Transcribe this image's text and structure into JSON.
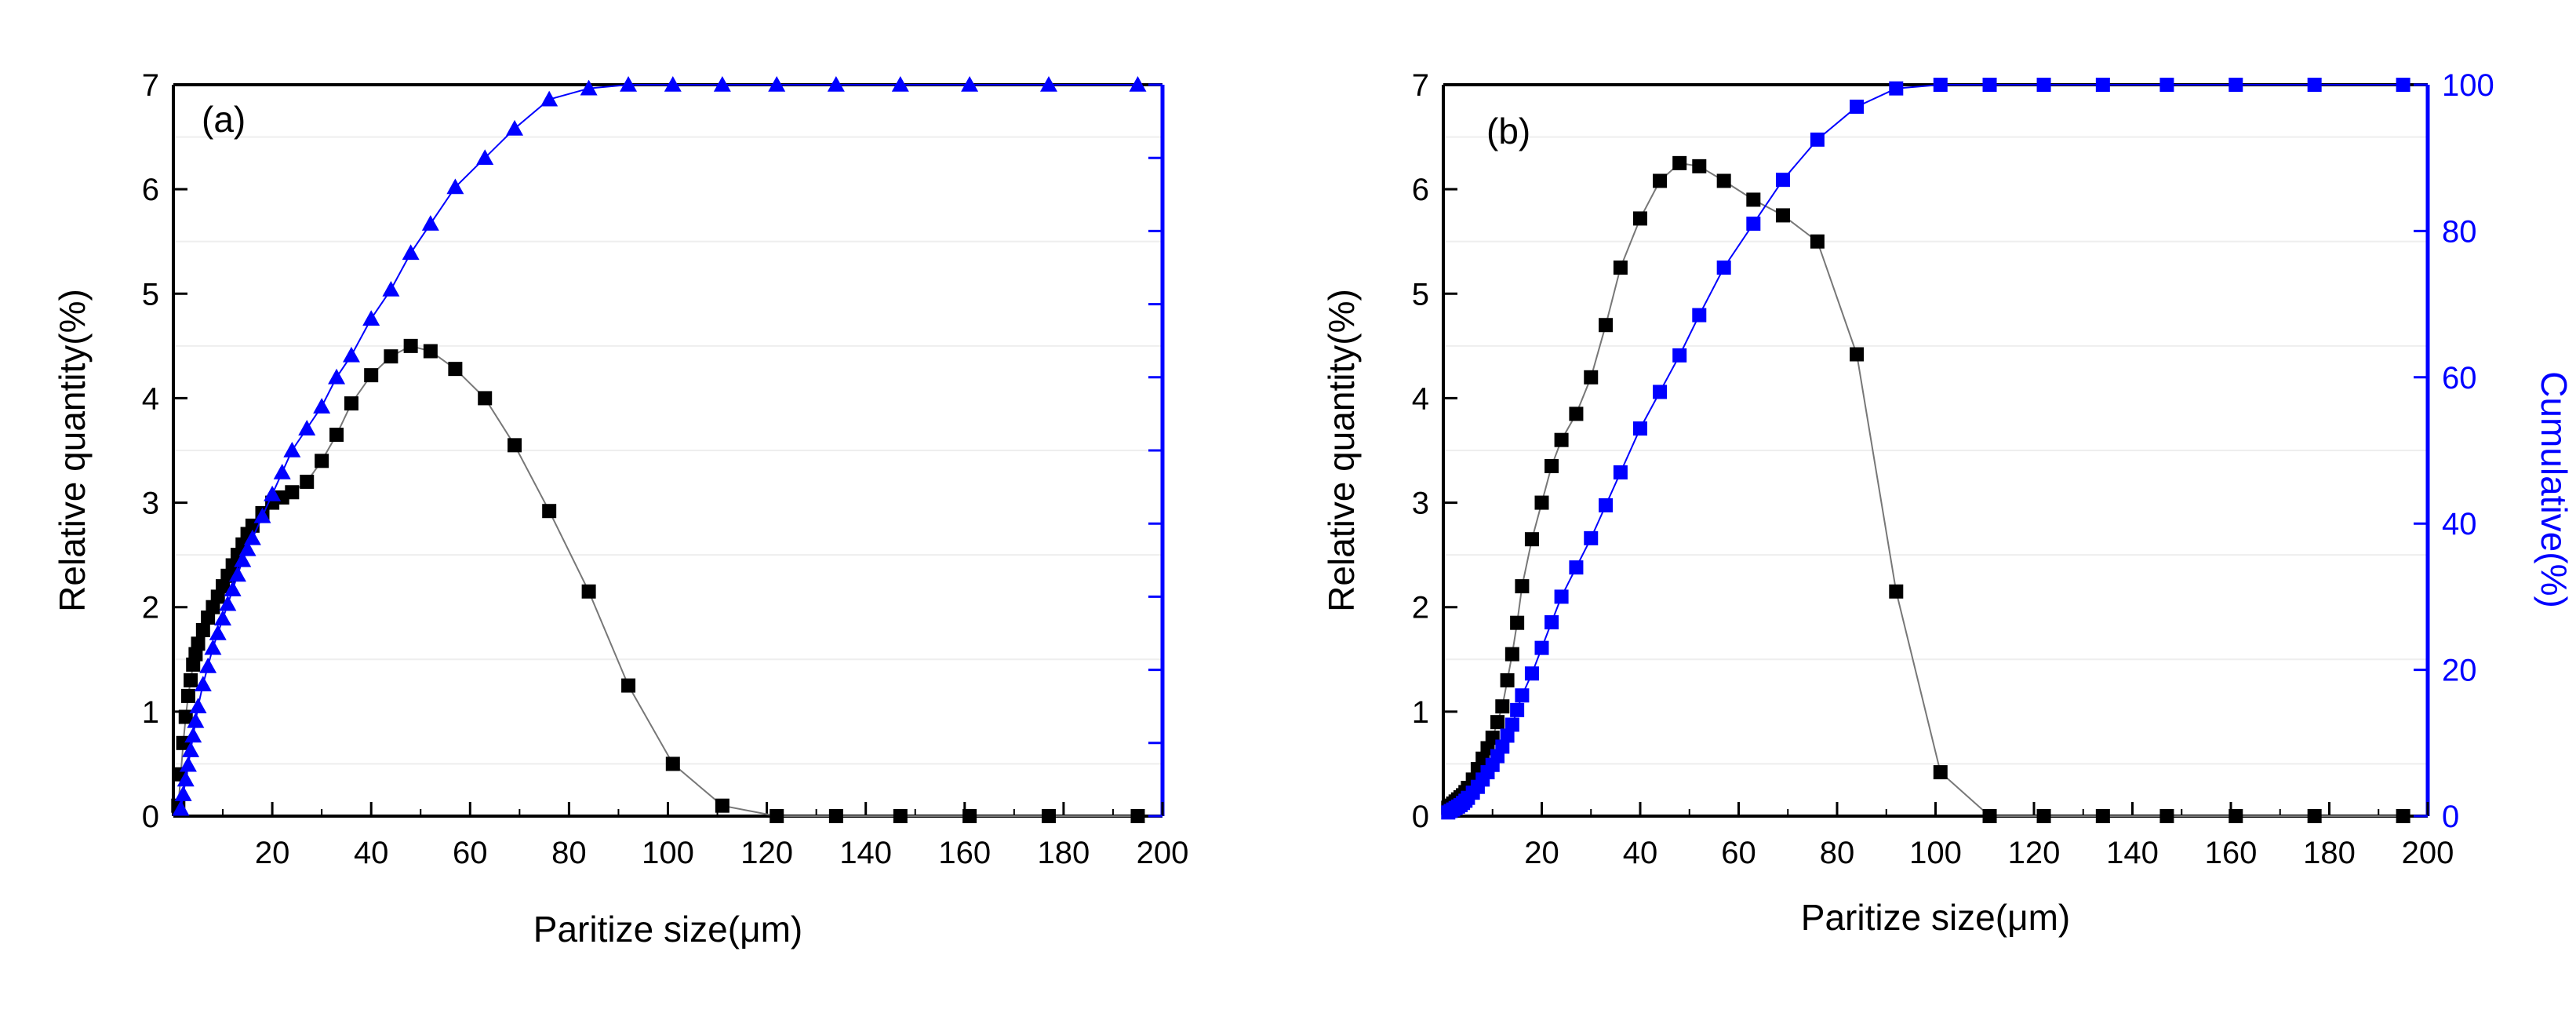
{
  "chart_data": [
    {
      "type": "line",
      "panel_label": "(a)",
      "xlabel": "Paritize size(μm)",
      "ylabel": "Relative quantity(%)",
      "xlim": [
        0,
        200
      ],
      "ylim": [
        0,
        7
      ],
      "x_ticks": [
        20,
        40,
        60,
        80,
        100,
        120,
        140,
        160,
        180,
        200
      ],
      "x_tick_labels": [
        "20",
        "40",
        "60",
        "80",
        "100",
        "120",
        "140",
        "160",
        "180",
        "200"
      ],
      "y_ticks": [
        0,
        1,
        2,
        3,
        4,
        5,
        6,
        7
      ],
      "y_tick_labels": [
        "0",
        "1",
        "2",
        "3",
        "4",
        "5",
        "6",
        "7"
      ],
      "y2": {
        "label": "",
        "lim": [
          0,
          100
        ],
        "ticks": [
          0,
          10,
          20,
          30,
          40,
          50,
          60,
          70,
          80,
          90,
          100
        ],
        "tick_labels": [],
        "color": "#0000ff"
      },
      "series": [
        {
          "name": "Relative quantity",
          "axis": "y",
          "marker": "square",
          "color": "#000000",
          "x": [
            1,
            1.5,
            2,
            2.5,
            3,
            3.5,
            4,
            4.5,
            5,
            6,
            7,
            8,
            9,
            10,
            11,
            12,
            13,
            14,
            15,
            16,
            18,
            20,
            22,
            24,
            27,
            30,
            33,
            36,
            40,
            44,
            48,
            52,
            57,
            63,
            69,
            76,
            84,
            92,
            101,
            111,
            122,
            134,
            147,
            161,
            177,
            195
          ],
          "y": [
            0.1,
            0.4,
            0.7,
            0.95,
            1.15,
            1.3,
            1.45,
            1.55,
            1.65,
            1.78,
            1.9,
            2.0,
            2.1,
            2.2,
            2.3,
            2.4,
            2.5,
            2.6,
            2.7,
            2.78,
            2.9,
            3.0,
            3.05,
            3.1,
            3.2,
            3.4,
            3.65,
            3.95,
            4.22,
            4.4,
            4.5,
            4.45,
            4.28,
            4.0,
            3.55,
            2.92,
            2.15,
            1.25,
            0.5,
            0.1,
            0.0,
            0.0,
            0.0,
            0.0,
            0.0,
            0.0
          ]
        },
        {
          "name": "Cumulative",
          "axis": "y2",
          "marker": "triangle",
          "color": "#0000ff",
          "x": [
            1.5,
            2,
            2.5,
            3,
            3.5,
            4,
            4.5,
            5,
            6,
            7,
            8,
            9,
            10,
            11,
            12,
            13,
            14,
            15,
            16,
            18,
            20,
            22,
            24,
            27,
            30,
            33,
            36,
            40,
            44,
            48,
            52,
            57,
            63,
            69,
            76,
            84,
            92,
            101,
            111,
            122,
            134,
            147,
            161,
            177,
            195
          ],
          "y": [
            1,
            3,
            5,
            7,
            9,
            11,
            13,
            15,
            18,
            20.5,
            23,
            25,
            27,
            29,
            31,
            33,
            35,
            36.5,
            38,
            41,
            44,
            47,
            50,
            53,
            56,
            60,
            63,
            68,
            72,
            77,
            81,
            86,
            90,
            94,
            98,
            99.5,
            100,
            100,
            100,
            100,
            100,
            100,
            100,
            100,
            100
          ]
        }
      ]
    },
    {
      "type": "line",
      "panel_label": "(b)",
      "xlabel": "Paritize size(μm)",
      "ylabel": "Relative quantity(%)",
      "xlim": [
        0,
        200
      ],
      "ylim": [
        0,
        7
      ],
      "x_ticks": [
        20,
        40,
        60,
        80,
        100,
        120,
        140,
        160,
        180,
        200
      ],
      "x_tick_labels": [
        "20",
        "40",
        "60",
        "80",
        "100",
        "120",
        "140",
        "160",
        "180",
        "200"
      ],
      "y_ticks": [
        0,
        1,
        2,
        3,
        4,
        5,
        6,
        7
      ],
      "y_tick_labels": [
        "0",
        "1",
        "2",
        "3",
        "4",
        "5",
        "6",
        "7"
      ],
      "y2": {
        "label": "Cumulative(%)",
        "lim": [
          0,
          100
        ],
        "ticks": [
          0,
          20,
          40,
          60,
          80,
          100
        ],
        "tick_labels": [
          "0",
          "20",
          "40",
          "60",
          "80",
          "100"
        ],
        "color": "#0000ff"
      },
      "series": [
        {
          "name": "Relative quantity",
          "axis": "y",
          "marker": "square",
          "color": "#000000",
          "x": [
            1,
            1.5,
            2,
            2.5,
            3,
            3.5,
            4,
            4.5,
            5,
            6,
            7,
            8,
            9,
            10,
            11,
            12,
            13,
            14,
            15,
            16,
            18,
            20,
            22,
            24,
            27,
            30,
            33,
            36,
            40,
            44,
            48,
            52,
            57,
            63,
            69,
            76,
            84,
            92,
            101,
            111,
            122,
            134,
            147,
            161,
            177,
            195
          ],
          "y": [
            0.08,
            0.1,
            0.12,
            0.14,
            0.16,
            0.18,
            0.2,
            0.23,
            0.27,
            0.35,
            0.45,
            0.55,
            0.65,
            0.75,
            0.9,
            1.05,
            1.3,
            1.55,
            1.85,
            2.2,
            2.65,
            3.0,
            3.35,
            3.6,
            3.85,
            4.2,
            4.7,
            5.25,
            5.72,
            6.08,
            6.25,
            6.22,
            6.08,
            5.9,
            5.75,
            5.5,
            4.42,
            2.15,
            0.42,
            0.0,
            0.0,
            0.0,
            0.0,
            0.0,
            0.0,
            0.0
          ]
        },
        {
          "name": "Cumulative",
          "axis": "y2",
          "marker": "square",
          "color": "#0000ff",
          "x": [
            1,
            1.5,
            2,
            2.5,
            3,
            3.5,
            4,
            4.5,
            5,
            6,
            7,
            8,
            9,
            10,
            11,
            12,
            13,
            14,
            15,
            16,
            18,
            20,
            22,
            24,
            27,
            30,
            33,
            36,
            40,
            44,
            48,
            52,
            57,
            63,
            69,
            76,
            84,
            92,
            101,
            111,
            122,
            134,
            147,
            161,
            177,
            195
          ],
          "y": [
            0.5,
            0.7,
            0.9,
            1.1,
            1.3,
            1.5,
            1.8,
            2.1,
            2.5,
            3.2,
            4,
            5,
            6,
            7,
            8.2,
            9.5,
            11,
            12.5,
            14.5,
            16.5,
            19.5,
            23,
            26.5,
            30,
            34,
            38,
            42.5,
            47,
            53,
            58,
            63,
            68.5,
            75,
            81,
            87,
            92.5,
            97,
            99.5,
            100,
            100,
            100,
            100,
            100,
            100,
            100,
            100
          ]
        }
      ]
    }
  ]
}
